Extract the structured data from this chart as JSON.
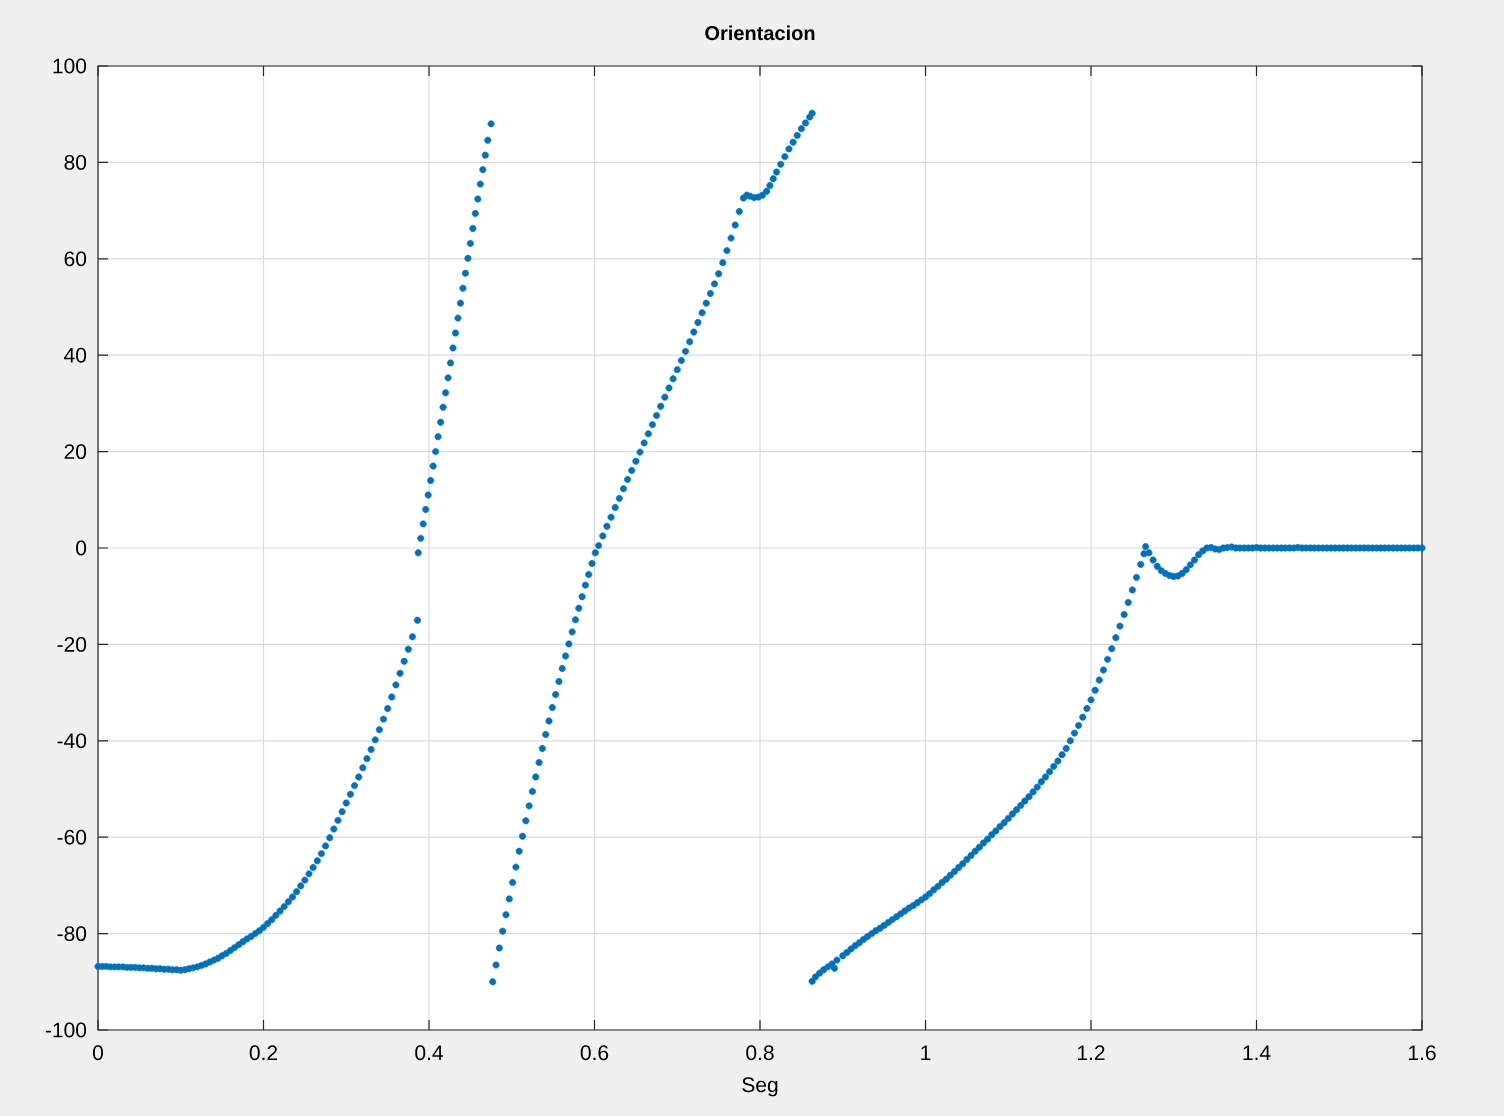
{
  "chart_data": {
    "type": "scatter",
    "title": "Orientacion",
    "xlabel": "Seg",
    "xlim": [
      0,
      1.6
    ],
    "ylim": [
      -100,
      100
    ],
    "xticks": [
      0,
      0.2,
      0.4,
      0.6,
      0.8,
      1,
      1.2,
      1.4,
      1.6
    ],
    "yticks": [
      -100,
      -80,
      -60,
      -40,
      -20,
      0,
      20,
      40,
      60,
      80,
      100
    ],
    "grid": true,
    "marker": "circle",
    "series": [
      {
        "color": "#0072bd",
        "x": [
          0,
          0.005,
          0.01,
          0.015,
          0.02,
          0.025,
          0.03,
          0.035,
          0.04,
          0.045,
          0.05,
          0.055,
          0.06,
          0.065,
          0.07,
          0.075,
          0.08,
          0.085,
          0.09,
          0.095,
          0.1,
          0.105,
          0.11,
          0.115,
          0.12,
          0.125,
          0.13,
          0.135,
          0.14,
          0.145,
          0.15,
          0.155,
          0.16,
          0.165,
          0.17,
          0.175,
          0.18,
          0.185,
          0.19,
          0.195,
          0.2,
          0.205,
          0.21,
          0.215,
          0.22,
          0.225,
          0.23,
          0.235,
          0.24,
          0.245,
          0.25,
          0.255,
          0.26,
          0.265,
          0.27,
          0.275,
          0.28,
          0.285,
          0.29,
          0.295,
          0.3,
          0.305,
          0.31,
          0.315,
          0.32,
          0.325,
          0.33,
          0.335,
          0.34,
          0.345,
          0.35,
          0.355,
          0.36,
          0.365,
          0.37,
          0.375,
          0.38,
          0.386
        ],
        "values": [
          -86.8,
          -86.8,
          -86.8,
          -86.9,
          -86.9,
          -86.9,
          -86.9,
          -87.0,
          -87.0,
          -87.0,
          -87.1,
          -87.1,
          -87.2,
          -87.2,
          -87.3,
          -87.3,
          -87.4,
          -87.4,
          -87.5,
          -87.5,
          -87.6,
          -87.5,
          -87.3,
          -87.1,
          -86.9,
          -86.6,
          -86.3,
          -85.9,
          -85.5,
          -85.1,
          -84.6,
          -84.1,
          -83.5,
          -82.9,
          -82.3,
          -81.7,
          -81.1,
          -80.6,
          -80.0,
          -79.4,
          -78.7,
          -77.9,
          -77.1,
          -76.2,
          -75.3,
          -74.4,
          -73.4,
          -72.4,
          -71.3,
          -70.1,
          -68.9,
          -67.6,
          -66.3,
          -64.9,
          -63.4,
          -61.8,
          -60.1,
          -58.3,
          -56.5,
          -54.7,
          -52.9,
          -51.1,
          -49.3,
          -47.5,
          -45.6,
          -43.7,
          -41.8,
          -39.8,
          -37.7,
          -35.5,
          -33.3,
          -30.9,
          -28.4,
          -26.0,
          -23.5,
          -21.0,
          -18.4,
          -15.0
        ]
      },
      {
        "color": "#0072bd",
        "x": [
          0.387,
          0.39,
          0.393,
          0.396,
          0.399,
          0.402,
          0.405,
          0.408,
          0.411,
          0.414,
          0.417,
          0.42,
          0.423,
          0.426,
          0.429,
          0.432,
          0.435,
          0.438,
          0.441,
          0.444,
          0.447,
          0.45,
          0.453,
          0.456,
          0.459,
          0.462,
          0.465,
          0.468,
          0.471,
          0.475
        ],
        "values": [
          -1.0,
          2.0,
          5.0,
          8.0,
          11.0,
          14.0,
          17.0,
          20.0,
          23.1,
          26.1,
          29.2,
          32.2,
          35.3,
          38.4,
          41.5,
          44.6,
          47.7,
          50.8,
          53.9,
          57.0,
          60.1,
          63.2,
          66.3,
          69.4,
          72.4,
          75.5,
          78.5,
          81.5,
          84.6,
          88.0
        ]
      },
      {
        "color": "#0072bd",
        "x": [
          0.477,
          0.481,
          0.485,
          0.489,
          0.493,
          0.497,
          0.501,
          0.505,
          0.509,
          0.513,
          0.517,
          0.521,
          0.525,
          0.529,
          0.533,
          0.537,
          0.541,
          0.545,
          0.549,
          0.553,
          0.557,
          0.561,
          0.565,
          0.569,
          0.573,
          0.577,
          0.581,
          0.585,
          0.589,
          0.593,
          0.597,
          0.601,
          0.605,
          0.61,
          0.615,
          0.62,
          0.625,
          0.63,
          0.635,
          0.64,
          0.645,
          0.65,
          0.655,
          0.66,
          0.665,
          0.67,
          0.675,
          0.68,
          0.685,
          0.69,
          0.695,
          0.7,
          0.705,
          0.71,
          0.715,
          0.72,
          0.725,
          0.73,
          0.735,
          0.74,
          0.745,
          0.75,
          0.755,
          0.76,
          0.765,
          0.77,
          0.775,
          0.78,
          0.784,
          0.788,
          0.793,
          0.798,
          0.803,
          0.808,
          0.812,
          0.816,
          0.82,
          0.825,
          0.83,
          0.835,
          0.84,
          0.845,
          0.85,
          0.855,
          0.86,
          0.863
        ],
        "values": [
          -90.0,
          -86.5,
          -83.0,
          -79.5,
          -76.1,
          -72.8,
          -69.4,
          -66.2,
          -62.9,
          -59.8,
          -56.6,
          -53.5,
          -50.5,
          -47.5,
          -44.5,
          -41.6,
          -38.7,
          -35.9,
          -33.1,
          -30.4,
          -27.7,
          -25.0,
          -22.4,
          -19.9,
          -17.4,
          -14.9,
          -12.5,
          -10.1,
          -7.7,
          -5.5,
          -3.2,
          -1.0,
          0.5,
          2.5,
          4.5,
          6.4,
          8.4,
          10.3,
          12.3,
          14.2,
          16.1,
          18.0,
          19.9,
          21.8,
          23.7,
          25.6,
          27.5,
          29.4,
          31.3,
          33.2,
          35.1,
          37.0,
          38.9,
          40.8,
          42.8,
          44.8,
          46.8,
          48.8,
          50.8,
          52.8,
          54.8,
          56.9,
          59.2,
          61.7,
          64.3,
          67.0,
          69.8,
          72.6,
          73.2,
          73.0,
          72.7,
          72.8,
          73.2,
          74.0,
          75.2,
          76.6,
          78.0,
          79.6,
          81.2,
          82.8,
          84.2,
          85.6,
          87.0,
          88.2,
          89.4,
          90.2
        ]
      },
      {
        "color": "#0072bd",
        "x": [
          0.863,
          0.867,
          0.872,
          0.877,
          0.882,
          0.887,
          0.89,
          0.893,
          0.9,
          0.905,
          0.91,
          0.915,
          0.92,
          0.925,
          0.93,
          0.935,
          0.94,
          0.945,
          0.95,
          0.955,
          0.96,
          0.965,
          0.97,
          0.975,
          0.98,
          0.985,
          0.99,
          0.995,
          1.0,
          1.005,
          1.01,
          1.015,
          1.02,
          1.025,
          1.03,
          1.035,
          1.04,
          1.045,
          1.05,
          1.055,
          1.06,
          1.065,
          1.07,
          1.075,
          1.08,
          1.085,
          1.09,
          1.095,
          1.1,
          1.105,
          1.11,
          1.115,
          1.12,
          1.125,
          1.13,
          1.135,
          1.14,
          1.145,
          1.15,
          1.155,
          1.16,
          1.165,
          1.17,
          1.175,
          1.18,
          1.185,
          1.19,
          1.195,
          1.2,
          1.205,
          1.21,
          1.215,
          1.22,
          1.225,
          1.23,
          1.235,
          1.24,
          1.245,
          1.25,
          1.255,
          1.26,
          1.264,
          1.266,
          1.27,
          1.275,
          1.28,
          1.285,
          1.29,
          1.295,
          1.3,
          1.305,
          1.31,
          1.315,
          1.32,
          1.325,
          1.33,
          1.335,
          1.34,
          1.345,
          1.35,
          1.355,
          1.36,
          1.365,
          1.37,
          1.375,
          1.38,
          1.385,
          1.39,
          1.395,
          1.4,
          1.405,
          1.41,
          1.415,
          1.42,
          1.425,
          1.43,
          1.435,
          1.44,
          1.445,
          1.45,
          1.455,
          1.46,
          1.465,
          1.47,
          1.475,
          1.48,
          1.485,
          1.49,
          1.495,
          1.5,
          1.505,
          1.51,
          1.515,
          1.52,
          1.525,
          1.53,
          1.535,
          1.54,
          1.545,
          1.55,
          1.555,
          1.56,
          1.565,
          1.57,
          1.575,
          1.58,
          1.585,
          1.59,
          1.595,
          1.6
        ],
        "values": [
          -89.9,
          -89.0,
          -88.2,
          -87.5,
          -86.9,
          -86.3,
          -87.2,
          -85.5,
          -84.6,
          -83.9,
          -83.2,
          -82.5,
          -81.9,
          -81.2,
          -80.6,
          -80.0,
          -79.4,
          -78.9,
          -78.3,
          -77.7,
          -77.1,
          -76.5,
          -75.9,
          -75.3,
          -74.7,
          -74.2,
          -73.6,
          -73.0,
          -72.4,
          -71.7,
          -70.9,
          -70.2,
          -69.4,
          -68.7,
          -67.9,
          -67.1,
          -66.3,
          -65.5,
          -64.6,
          -63.8,
          -62.9,
          -62.1,
          -61.2,
          -60.4,
          -59.5,
          -58.7,
          -57.8,
          -57.0,
          -56.1,
          -55.2,
          -54.3,
          -53.4,
          -52.5,
          -51.6,
          -50.6,
          -49.6,
          -48.5,
          -47.5,
          -46.4,
          -45.3,
          -44.2,
          -42.9,
          -41.6,
          -40.0,
          -38.4,
          -36.8,
          -35.1,
          -33.3,
          -31.5,
          -29.5,
          -27.4,
          -25.3,
          -23.1,
          -20.9,
          -18.6,
          -16.2,
          -13.8,
          -11.3,
          -8.7,
          -6.1,
          -3.4,
          -1.2,
          0.3,
          -1.0,
          -2.5,
          -3.8,
          -4.7,
          -5.3,
          -5.7,
          -5.9,
          -5.8,
          -5.3,
          -4.5,
          -3.5,
          -2.5,
          -1.4,
          -0.6,
          0.0,
          0.1,
          -0.2,
          -0.3,
          0.0,
          0.1,
          0.2,
          0.0,
          0.0,
          0.0,
          0.0,
          0.0,
          0.1,
          0.0,
          0.0,
          0.0,
          0.0,
          0.0,
          0.0,
          0.0,
          0.0,
          0.0,
          0.1,
          0.0,
          0.0,
          0.0,
          0.0,
          0.0,
          0.0,
          0.0,
          0.0,
          0.0,
          0.0,
          0.0,
          0.0,
          0.0,
          0.0,
          0.0,
          0.0,
          0.0,
          0.0,
          0.0,
          0.0,
          0.0,
          0.0,
          0.0,
          0.0,
          0.0,
          0.0,
          0.0,
          0.0,
          0.0,
          0.0
        ]
      }
    ]
  }
}
